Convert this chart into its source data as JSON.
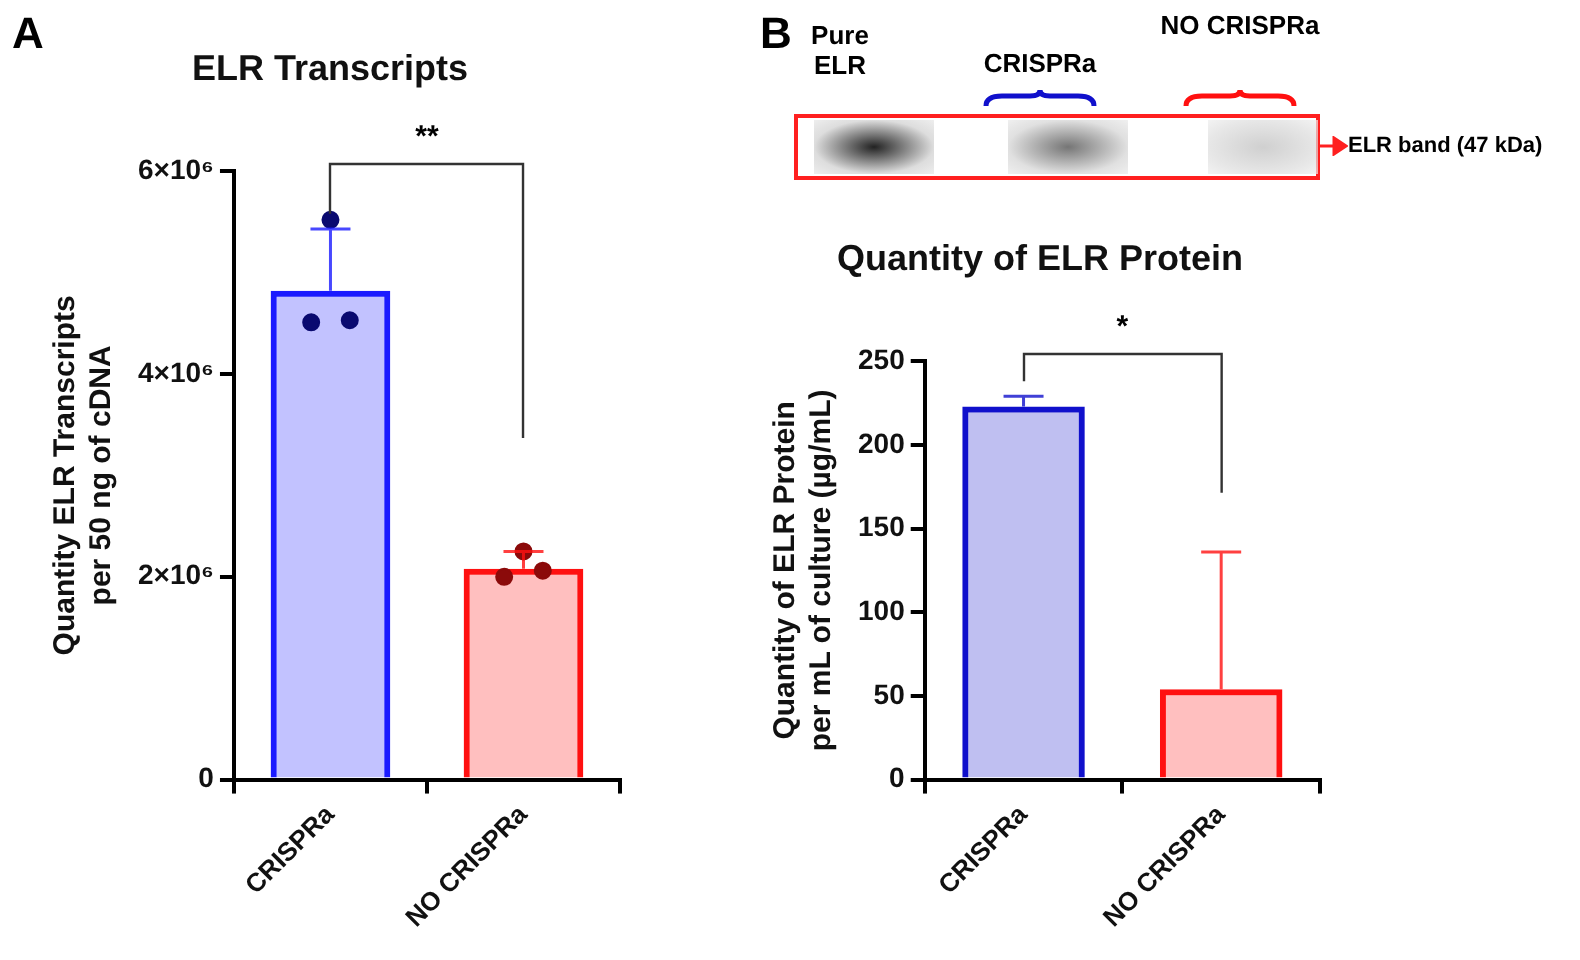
{
  "chart_data": [
    {
      "type": "bar",
      "title": "ELR Transcripts",
      "ylabel": "Quantity ELR Transcripts\nper 50 ng of cDNA",
      "categories": [
        "CRISPRa",
        "NO CRISPRa"
      ],
      "series": [
        {
          "values": [
            4820000,
            2080000
          ],
          "colors": [
            "#1a1aff",
            "#ff1010"
          ],
          "errors": [
            [
              4820000,
              5430000
            ],
            [
              2080000,
              2250000
            ]
          ]
        },
        {
          "type": "scatter",
          "x": [
            "CRISPRa",
            "CRISPRa",
            "CRISPRa",
            "NO CRISPRa",
            "NO CRISPRa",
            "NO CRISPRa"
          ],
          "values": [
            4510000,
            5520000,
            4530000,
            2000000,
            2250000,
            2060000
          ],
          "colors": [
            "#0a0a70",
            "#0a0a70",
            "#0a0a70",
            "#8b0a0a",
            "#8b0a0a",
            "#8b0a0a"
          ]
        }
      ],
      "ylim": [
        0,
        6000000
      ],
      "yticks": [
        0,
        {
          "value": 2000000,
          "label": "2×10⁶"
        },
        {
          "value": 4000000,
          "label": "4×10⁶"
        },
        {
          "value": 6000000,
          "label": "6×10⁶"
        }
      ],
      "grid": false,
      "legend": false,
      "marker": "circle",
      "annotations": [
        "A",
        "**"
      ]
    },
    {
      "type": "bar",
      "title": "Quantity of ELR Protein",
      "ylabel": "Quantity of ELR Protein\nper mL of culture (µg/mL)",
      "categories": [
        "CRISPRa",
        "NO CRISPRa"
      ],
      "series": [
        {
          "values": [
            223,
            54
          ],
          "colors": [
            "#1010cc",
            "#ff1010"
          ],
          "errors": [
            [
              223,
              229
            ],
            [
              54,
              136
            ]
          ]
        }
      ],
      "ylim": [
        0,
        250
      ],
      "yticks": [
        0,
        50,
        100,
        150,
        200,
        250
      ],
      "grid": false,
      "legend": false,
      "annotations": [
        "B",
        "*",
        "Pure ELR",
        "CRISPRa",
        "NO CRISPRa",
        "ELR band (47 kDa)"
      ]
    }
  ]
}
